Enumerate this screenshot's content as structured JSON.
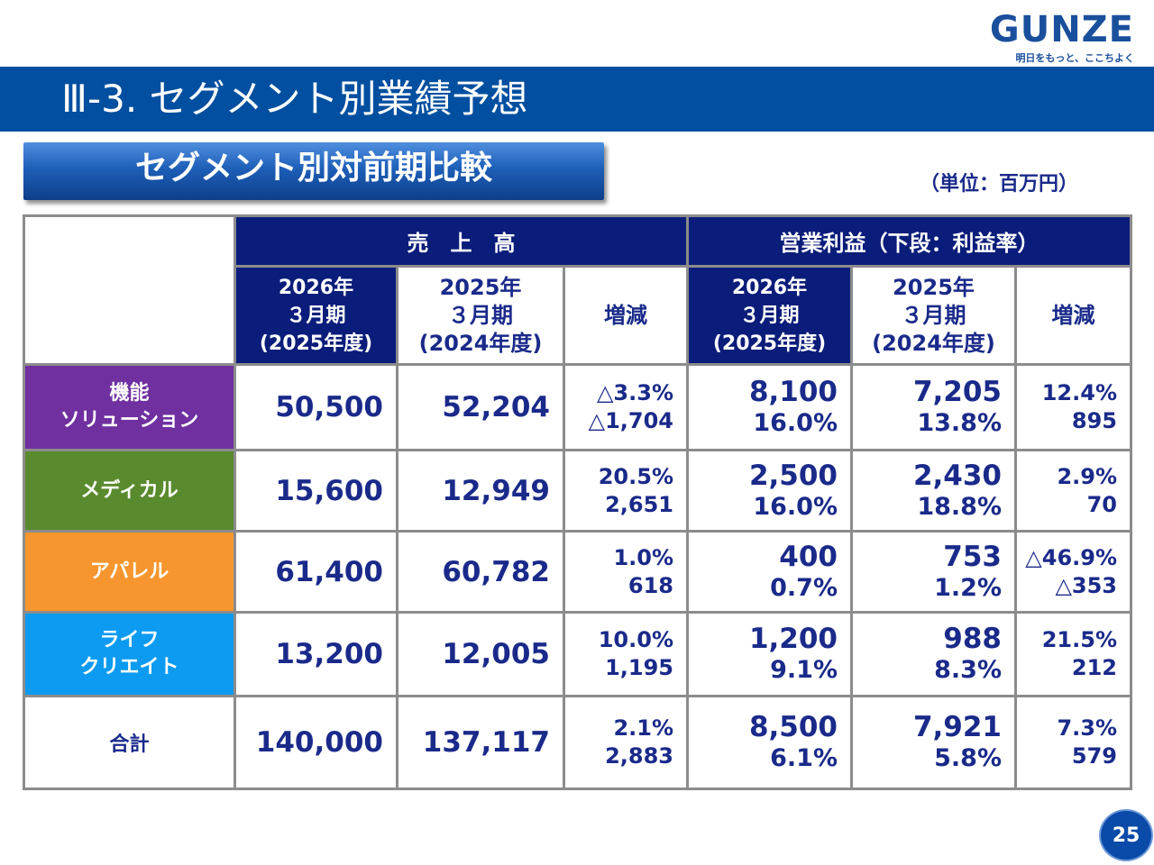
{
  "brand": {
    "name": "GUNZE",
    "tagline": "明日をもっと、ここちよく"
  },
  "header": {
    "title": "Ⅲ-3. セグメント別業績予想"
  },
  "section": {
    "title": "セグメント別対前期比較",
    "unit": "（単位：百万円）"
  },
  "table": {
    "group_sales": "売　上　高",
    "group_op": "営業利益（下段：利益率）",
    "col_2026": "2026年\n３月期\n(2025年度)",
    "col_2025": "2025年\n３月期\n(2024年度)",
    "col_change": "増減",
    "rows": [
      {
        "name": "機能\nソリューション",
        "color": "#7030a0",
        "sales_2026": "50,500",
        "sales_2025": "52,204",
        "sales_chg_pct": "△3.3%",
        "sales_chg": "△1,704",
        "op_2026": "8,100",
        "margin_2026": "16.0%",
        "op_2025": "7,205",
        "margin_2025": "13.8%",
        "op_chg_pct": "12.4%",
        "op_chg": "895"
      },
      {
        "name": "メディカル",
        "color": "#5a8a2e",
        "sales_2026": "15,600",
        "sales_2025": "12,949",
        "sales_chg_pct": "20.5%",
        "sales_chg": "2,651",
        "op_2026": "2,500",
        "margin_2026": "16.0%",
        "op_2025": "2,430",
        "margin_2025": "18.8%",
        "op_chg_pct": "2.9%",
        "op_chg": "70"
      },
      {
        "name": "アパレル",
        "color": "#f7962e",
        "sales_2026": "61,400",
        "sales_2025": "60,782",
        "sales_chg_pct": "1.0%",
        "sales_chg": "618",
        "op_2026": "400",
        "margin_2026": "0.7%",
        "op_2025": "753",
        "margin_2025": "1.2%",
        "op_chg_pct": "△46.9%",
        "op_chg": "△353"
      },
      {
        "name": "ライフ\nクリエイト",
        "color": "#0c9bf0",
        "sales_2026": "13,200",
        "sales_2025": "12,005",
        "sales_chg_pct": "10.0%",
        "sales_chg": "1,195",
        "op_2026": "1,200",
        "margin_2026": "9.1%",
        "op_2025": "988",
        "margin_2025": "8.3%",
        "op_chg_pct": "21.5%",
        "op_chg": "212"
      }
    ],
    "total": {
      "name": "合計",
      "sales_2026": "140,000",
      "sales_2025": "137,117",
      "sales_chg_pct": "2.1%",
      "sales_chg": "2,883",
      "op_2026": "8,500",
      "margin_2026": "6.1%",
      "op_2025": "7,921",
      "margin_2025": "5.8%",
      "op_chg_pct": "7.3%",
      "op_chg": "579"
    }
  },
  "page_number": "25"
}
